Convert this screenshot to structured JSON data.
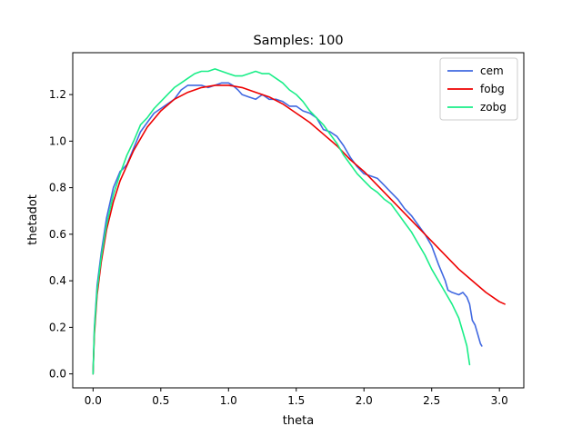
{
  "chart_data": {
    "type": "line",
    "title": "Samples: 100",
    "xlabel": "theta",
    "ylabel": "thetadot",
    "xlim": [
      -0.15,
      3.18
    ],
    "ylim": [
      -0.06,
      1.38
    ],
    "xticks": [
      "0.0",
      "0.5",
      "1.0",
      "1.5",
      "2.0",
      "2.5",
      "3.0"
    ],
    "yticks": [
      "0.0",
      "0.2",
      "0.4",
      "0.6",
      "0.8",
      "1.0",
      "1.2"
    ],
    "grid": false,
    "legend_position": "top-right",
    "series": [
      {
        "name": "cem",
        "color": "#4169e1",
        "x": [
          0.0,
          0.01,
          0.03,
          0.06,
          0.1,
          0.15,
          0.2,
          0.22,
          0.25,
          0.3,
          0.35,
          0.4,
          0.45,
          0.5,
          0.55,
          0.6,
          0.65,
          0.7,
          0.75,
          0.8,
          0.85,
          0.9,
          0.95,
          1.0,
          1.03,
          1.07,
          1.1,
          1.15,
          1.2,
          1.25,
          1.3,
          1.35,
          1.4,
          1.45,
          1.5,
          1.55,
          1.6,
          1.65,
          1.7,
          1.75,
          1.8,
          1.85,
          1.9,
          1.95,
          2.0,
          2.05,
          2.1,
          2.15,
          2.2,
          2.25,
          2.3,
          2.35,
          2.4,
          2.45,
          2.5,
          2.55,
          2.6,
          2.62,
          2.65,
          2.7,
          2.73,
          2.76,
          2.78,
          2.8,
          2.82,
          2.84,
          2.86,
          2.87
        ],
        "y": [
          0.0,
          0.2,
          0.38,
          0.52,
          0.67,
          0.8,
          0.87,
          0.88,
          0.9,
          0.97,
          1.04,
          1.08,
          1.12,
          1.14,
          1.16,
          1.18,
          1.22,
          1.24,
          1.24,
          1.24,
          1.23,
          1.24,
          1.25,
          1.25,
          1.24,
          1.22,
          1.2,
          1.19,
          1.18,
          1.2,
          1.18,
          1.18,
          1.17,
          1.15,
          1.15,
          1.13,
          1.12,
          1.1,
          1.05,
          1.04,
          1.02,
          0.98,
          0.93,
          0.89,
          0.86,
          0.85,
          0.84,
          0.81,
          0.78,
          0.75,
          0.71,
          0.68,
          0.64,
          0.6,
          0.55,
          0.47,
          0.4,
          0.36,
          0.35,
          0.34,
          0.35,
          0.33,
          0.3,
          0.23,
          0.21,
          0.17,
          0.13,
          0.12
        ]
      },
      {
        "name": "fobg",
        "color": "#ee0000",
        "x": [
          0.0,
          0.01,
          0.03,
          0.06,
          0.1,
          0.15,
          0.2,
          0.3,
          0.4,
          0.5,
          0.6,
          0.7,
          0.8,
          0.9,
          1.0,
          1.1,
          1.2,
          1.3,
          1.4,
          1.5,
          1.6,
          1.7,
          1.8,
          1.9,
          2.0,
          2.1,
          2.2,
          2.3,
          2.4,
          2.5,
          2.6,
          2.7,
          2.8,
          2.9,
          3.0,
          3.04
        ],
        "y": [
          0.0,
          0.17,
          0.34,
          0.48,
          0.62,
          0.74,
          0.83,
          0.96,
          1.06,
          1.13,
          1.18,
          1.21,
          1.23,
          1.24,
          1.24,
          1.23,
          1.21,
          1.19,
          1.16,
          1.12,
          1.08,
          1.03,
          0.98,
          0.92,
          0.87,
          0.81,
          0.75,
          0.69,
          0.63,
          0.57,
          0.51,
          0.45,
          0.4,
          0.35,
          0.31,
          0.3
        ]
      },
      {
        "name": "zobg",
        "color": "#1aee88",
        "x": [
          0.0,
          0.01,
          0.03,
          0.06,
          0.1,
          0.15,
          0.2,
          0.25,
          0.3,
          0.35,
          0.4,
          0.45,
          0.5,
          0.55,
          0.6,
          0.65,
          0.7,
          0.75,
          0.8,
          0.85,
          0.9,
          0.95,
          1.0,
          1.05,
          1.1,
          1.15,
          1.2,
          1.25,
          1.3,
          1.35,
          1.4,
          1.45,
          1.5,
          1.55,
          1.6,
          1.65,
          1.7,
          1.75,
          1.8,
          1.85,
          1.9,
          1.95,
          2.0,
          2.05,
          2.1,
          2.15,
          2.2,
          2.25,
          2.3,
          2.35,
          2.4,
          2.45,
          2.5,
          2.55,
          2.6,
          2.65,
          2.7,
          2.73,
          2.76,
          2.78
        ],
        "y": [
          0.0,
          0.19,
          0.36,
          0.5,
          0.64,
          0.77,
          0.86,
          0.94,
          1.0,
          1.07,
          1.1,
          1.14,
          1.17,
          1.2,
          1.23,
          1.25,
          1.27,
          1.29,
          1.3,
          1.3,
          1.31,
          1.3,
          1.29,
          1.28,
          1.28,
          1.29,
          1.3,
          1.29,
          1.29,
          1.27,
          1.25,
          1.22,
          1.2,
          1.17,
          1.13,
          1.1,
          1.07,
          1.03,
          0.99,
          0.94,
          0.9,
          0.86,
          0.83,
          0.8,
          0.78,
          0.75,
          0.73,
          0.69,
          0.65,
          0.61,
          0.56,
          0.51,
          0.45,
          0.4,
          0.35,
          0.3,
          0.24,
          0.18,
          0.12,
          0.04
        ]
      }
    ]
  }
}
